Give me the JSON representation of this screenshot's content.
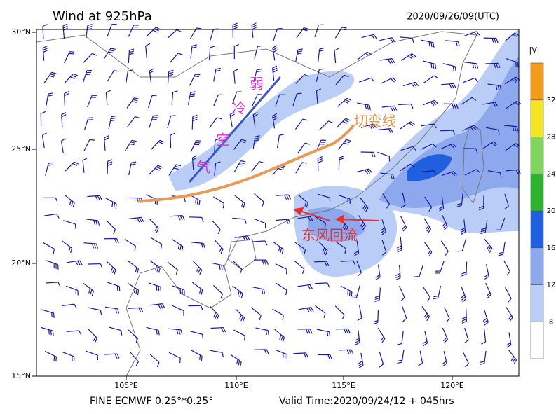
{
  "header": {
    "title": "Wind at 925hPa",
    "time": "2020/09/26/09(UTC)"
  },
  "axes": {
    "lat_labels": [
      "30°N",
      "25°N",
      "20°N",
      "15°N"
    ],
    "lon_labels": [
      "105°E",
      "110°E",
      "115°E",
      "120°E"
    ]
  },
  "colorbar": {
    "title": "|V|",
    "labels": [
      "8",
      "12",
      "16",
      "20",
      "24",
      "28",
      "32"
    ],
    "colors": [
      "#ffffff",
      "#b9cdf6",
      "#8ea8ee",
      "#1f5fe0",
      "#2db32d",
      "#7ed65c",
      "#f4e524",
      "#f39c1c"
    ]
  },
  "annotations": {
    "cold_air": [
      "弱",
      "冷",
      "空",
      "气"
    ],
    "shear_line": "切变线",
    "east_wind": "东风回流"
  },
  "footer": {
    "model": "FINE ECMWF 0.25°*0.25°",
    "valid": "Valid Time:2020/09/24/12 + 045hrs"
  }
}
